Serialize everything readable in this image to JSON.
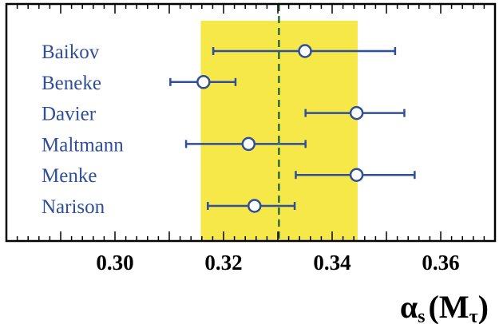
{
  "chart_data": {
    "type": "scatter",
    "orientation": "horizontal-error-bars",
    "xlim": [
      0.28,
      0.37
    ],
    "x_ticks": [
      0.3,
      0.32,
      0.34,
      0.36
    ],
    "x_tick_labels": [
      "0.30",
      "0.32",
      "0.34",
      "0.36"
    ],
    "xlabel": "αs (Mτ)",
    "xlabel_parts": {
      "alpha": "α",
      "sub_s": "s",
      "open": "(",
      "M": "M",
      "sub_tau": "τ",
      "close": ")"
    },
    "band": {
      "low": 0.3158,
      "high": 0.3447,
      "color": "#f7e84a"
    },
    "reference_line": {
      "x": 0.3302,
      "style": "dashed",
      "color": "#2e6b3a"
    },
    "series_color": "#2f4f9a",
    "entries": [
      {
        "label": "Baikov",
        "value": 0.335,
        "err_low": 0.3181,
        "err_high": 0.3516
      },
      {
        "label": "Beneke",
        "value": 0.3163,
        "err_low": 0.3102,
        "err_high": 0.3222
      },
      {
        "label": "Davier",
        "value": 0.3445,
        "err_low": 0.3351,
        "err_high": 0.3533
      },
      {
        "label": "Maltmann",
        "value": 0.3246,
        "err_low": 0.3131,
        "err_high": 0.3351
      },
      {
        "label": "Menke",
        "value": 0.3445,
        "err_low": 0.3333,
        "err_high": 0.3552
      },
      {
        "label": "Narison",
        "value": 0.3257,
        "err_low": 0.3171,
        "err_high": 0.3331
      }
    ]
  }
}
